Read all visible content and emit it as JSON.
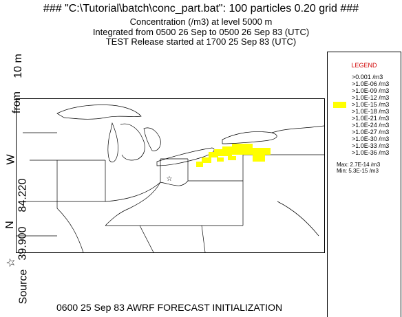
{
  "header": {
    "line1": "### \"C:\\Tutorial\\batch\\conc_part.bat\": 100 particles 0.20 grid ###",
    "line2": "Concentration  (/m3) at level  5000 m",
    "line3": "Integrated from 0500 26 Sep to 0500 26 Sep 83 (UTC)",
    "line4": "TEST Release started at 1700 25 Sep 83 (UTC)"
  },
  "side_label": {
    "source": "Source",
    "star": "☆",
    "lat": "39.900",
    "lat_dir": "N",
    "lon": "84.220",
    "lon_dir": "W",
    "from": "from",
    "height": "10 m"
  },
  "legend": {
    "title": "LEGEND",
    "levels": [
      ">0.001 /m3",
      ">1.0E-06 /m3",
      ">1.0E-09 /m3",
      ">1.0E-12 /m3",
      ">1.0E-15 /m3",
      ">1.0E-18 /m3",
      ">1.0E-21 /m3",
      ">1.0E-24 /m3",
      ">1.0E-27 /m3",
      ">1.0E-30 /m3",
      ">1.0E-33 /m3",
      ">1.0E-36 /m3"
    ],
    "active_level_index": 4,
    "active_color": "#ffff00",
    "max": "Max: 2.7E-14 /m3",
    "min": "Min: 5.3E-15 /m3"
  },
  "footer": "0600 25 Sep 83 AWRF FORECAST INITIALIZATION",
  "colors": {
    "plume": "#ffff00",
    "title_legend": "#d00000"
  }
}
